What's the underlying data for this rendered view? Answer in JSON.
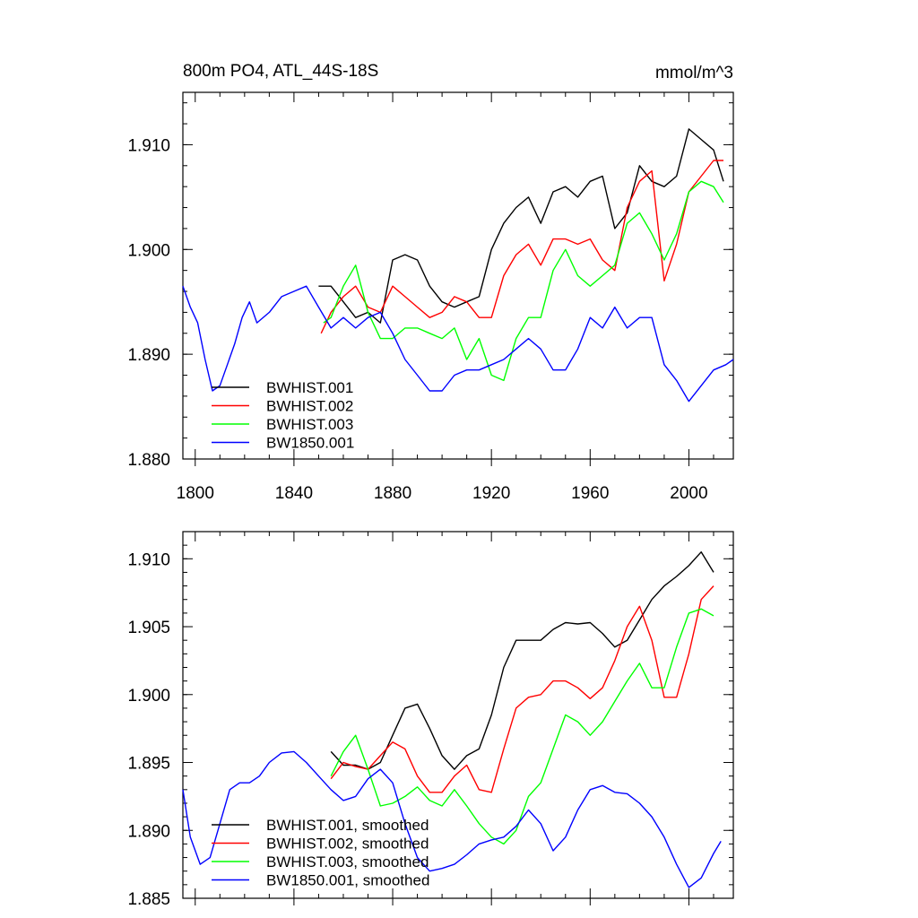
{
  "chart_data": [
    {
      "type": "line",
      "title": "800m PO4, ATL_44S-18S",
      "units": "mmol/m^3",
      "xlim": [
        1795,
        2018
      ],
      "ylim": [
        1.88,
        1.915
      ],
      "xticks": [
        1800,
        1840,
        1880,
        1920,
        1960,
        2000
      ],
      "xtick_labels": [
        "1800",
        "1840",
        "1880",
        "1920",
        "1960",
        "2000"
      ],
      "yticks": [
        1.88,
        1.89,
        1.9,
        1.91
      ],
      "ytick_labels": [
        "1.880",
        "1.890",
        "1.900",
        "1.910"
      ],
      "legend_position": "bottom-left",
      "series": [
        {
          "name": "BWHIST.001",
          "color": "#000000",
          "x": [
            1850,
            1855,
            1860,
            1865,
            1870,
            1875,
            1880,
            1885,
            1890,
            1895,
            1900,
            1905,
            1910,
            1915,
            1920,
            1925,
            1930,
            1935,
            1940,
            1945,
            1950,
            1955,
            1960,
            1965,
            1970,
            1975,
            1980,
            1985,
            1990,
            1995,
            2000,
            2005,
            2010,
            2014
          ],
          "y": [
            1.8965,
            1.8965,
            1.895,
            1.8935,
            1.894,
            1.893,
            1.899,
            1.8995,
            1.899,
            1.8965,
            1.895,
            1.8945,
            1.895,
            1.8955,
            1.9,
            1.9025,
            1.904,
            1.905,
            1.9025,
            1.9055,
            1.906,
            1.905,
            1.9065,
            1.907,
            1.902,
            1.9035,
            1.908,
            1.9065,
            1.906,
            1.907,
            1.9115,
            1.9105,
            1.9095,
            1.9065
          ]
        },
        {
          "name": "BWHIST.002",
          "color": "#ff0000",
          "x": [
            1851,
            1855,
            1860,
            1865,
            1870,
            1875,
            1880,
            1885,
            1890,
            1895,
            1900,
            1905,
            1910,
            1915,
            1920,
            1925,
            1930,
            1935,
            1940,
            1945,
            1950,
            1955,
            1960,
            1965,
            1970,
            1975,
            1980,
            1985,
            1990,
            1995,
            2000,
            2005,
            2010,
            2014
          ],
          "y": [
            1.892,
            1.894,
            1.8955,
            1.8965,
            1.8945,
            1.894,
            1.8965,
            1.8955,
            1.8945,
            1.8935,
            1.894,
            1.8955,
            1.895,
            1.8935,
            1.8935,
            1.8975,
            1.8995,
            1.9005,
            1.8985,
            1.901,
            1.901,
            1.9005,
            1.901,
            1.899,
            1.898,
            1.904,
            1.9065,
            1.9075,
            1.897,
            1.9005,
            1.9055,
            1.907,
            1.9085,
            1.9085
          ]
        },
        {
          "name": "BWHIST.003",
          "color": "#00ff00",
          "x": [
            1852,
            1855,
            1860,
            1865,
            1870,
            1875,
            1880,
            1885,
            1890,
            1895,
            1900,
            1905,
            1910,
            1915,
            1920,
            1925,
            1930,
            1935,
            1940,
            1945,
            1950,
            1955,
            1960,
            1965,
            1970,
            1975,
            1980,
            1985,
            1990,
            1995,
            2000,
            2005,
            2010,
            2014
          ],
          "y": [
            1.893,
            1.8935,
            1.8965,
            1.8985,
            1.894,
            1.8915,
            1.8915,
            1.8925,
            1.8925,
            1.892,
            1.8915,
            1.8925,
            1.8895,
            1.8915,
            1.888,
            1.8875,
            1.8915,
            1.8935,
            1.8935,
            1.898,
            1.9,
            1.8975,
            1.8965,
            1.8975,
            1.8985,
            1.9025,
            1.9035,
            1.9015,
            1.899,
            1.9015,
            1.9055,
            1.9065,
            1.906,
            1.9045
          ]
        },
        {
          "name": "BW1850.001",
          "color": "#0000ff",
          "x": [
            1795,
            1798,
            1801,
            1804,
            1807,
            1810,
            1813,
            1816,
            1819,
            1822,
            1825,
            1830,
            1835,
            1840,
            1845,
            1850,
            1855,
            1860,
            1865,
            1870,
            1875,
            1880,
            1885,
            1890,
            1895,
            1900,
            1905,
            1910,
            1915,
            1920,
            1925,
            1930,
            1935,
            1940,
            1945,
            1950,
            1955,
            1960,
            1965,
            1970,
            1975,
            1980,
            1985,
            1990,
            1995,
            2000,
            2005,
            2010,
            2015,
            2018
          ],
          "y": [
            1.8965,
            1.8945,
            1.893,
            1.8895,
            1.8865,
            1.887,
            1.889,
            1.891,
            1.8935,
            1.895,
            1.893,
            1.894,
            1.8955,
            1.896,
            1.8965,
            1.8945,
            1.8925,
            1.8935,
            1.8925,
            1.8935,
            1.894,
            1.892,
            1.8895,
            1.888,
            1.8865,
            1.8865,
            1.888,
            1.8885,
            1.8885,
            1.889,
            1.8895,
            1.8905,
            1.8915,
            1.8905,
            1.8885,
            1.8885,
            1.8905,
            1.8935,
            1.8925,
            1.8945,
            1.8925,
            1.8935,
            1.8935,
            1.889,
            1.8875,
            1.8855,
            1.887,
            1.8885,
            1.889,
            1.8895
          ]
        }
      ]
    },
    {
      "type": "line",
      "xlim": [
        1795,
        2018
      ],
      "ylim": [
        1.885,
        1.912
      ],
      "xticks": [
        1800,
        1840,
        1880,
        1920,
        1960,
        2000
      ],
      "yticks": [
        1.885,
        1.89,
        1.895,
        1.9,
        1.905,
        1.91
      ],
      "ytick_labels": [
        "1.885",
        "1.890",
        "1.895",
        "1.900",
        "1.905",
        "1.910"
      ],
      "legend_position": "bottom-left",
      "series": [
        {
          "name": "BWHIST.001, smoothed",
          "color": "#000000",
          "x": [
            1855,
            1860,
            1865,
            1870,
            1875,
            1880,
            1885,
            1890,
            1895,
            1900,
            1905,
            1910,
            1915,
            1920,
            1925,
            1930,
            1935,
            1940,
            1945,
            1950,
            1955,
            1960,
            1965,
            1970,
            1975,
            1980,
            1985,
            1990,
            1995,
            2000,
            2005,
            2010
          ],
          "y": [
            1.8958,
            1.8948,
            1.8948,
            1.8945,
            1.895,
            1.897,
            1.899,
            1.8993,
            1.8975,
            1.8955,
            1.8945,
            1.8955,
            1.896,
            1.8985,
            1.902,
            1.904,
            1.904,
            1.904,
            1.9048,
            1.9053,
            1.9052,
            1.9053,
            1.9045,
            1.9035,
            1.904,
            1.9055,
            1.907,
            1.908,
            1.9087,
            1.9095,
            1.9105,
            1.909
          ]
        },
        {
          "name": "BWHIST.002, smoothed",
          "color": "#ff0000",
          "x": [
            1855,
            1860,
            1865,
            1870,
            1875,
            1880,
            1885,
            1890,
            1895,
            1900,
            1905,
            1910,
            1915,
            1920,
            1925,
            1930,
            1935,
            1940,
            1945,
            1950,
            1955,
            1960,
            1965,
            1970,
            1975,
            1980,
            1985,
            1990,
            1995,
            2000,
            2005,
            2010
          ],
          "y": [
            1.8938,
            1.895,
            1.8947,
            1.8945,
            1.8955,
            1.8965,
            1.896,
            1.894,
            1.8928,
            1.8928,
            1.894,
            1.8948,
            1.893,
            1.8928,
            1.896,
            1.899,
            1.8998,
            1.9,
            1.901,
            1.901,
            1.9005,
            1.8997,
            1.9005,
            1.9025,
            1.905,
            1.9065,
            1.904,
            1.8998,
            1.8998,
            1.903,
            1.907,
            1.908
          ]
        },
        {
          "name": "BWHIST.003, smoothed",
          "color": "#00ff00",
          "x": [
            1855,
            1860,
            1865,
            1870,
            1875,
            1880,
            1885,
            1890,
            1895,
            1900,
            1905,
            1910,
            1915,
            1920,
            1925,
            1930,
            1935,
            1940,
            1945,
            1950,
            1955,
            1960,
            1965,
            1970,
            1975,
            1980,
            1985,
            1990,
            1995,
            2000,
            2005,
            2010
          ],
          "y": [
            1.894,
            1.8958,
            1.897,
            1.8945,
            1.8918,
            1.892,
            1.8925,
            1.8932,
            1.8922,
            1.8918,
            1.893,
            1.8918,
            1.8905,
            1.8895,
            1.889,
            1.89,
            1.8925,
            1.8935,
            1.896,
            1.8985,
            1.898,
            1.897,
            1.898,
            1.8995,
            1.901,
            1.9023,
            1.9005,
            1.9005,
            1.9035,
            1.906,
            1.9063,
            1.9058
          ]
        },
        {
          "name": "BW1850.001, smoothed",
          "color": "#0000ff",
          "x": [
            1795,
            1798,
            1802,
            1806,
            1810,
            1814,
            1818,
            1822,
            1826,
            1830,
            1835,
            1840,
            1845,
            1850,
            1855,
            1860,
            1865,
            1870,
            1875,
            1880,
            1885,
            1890,
            1895,
            1900,
            1905,
            1910,
            1915,
            1920,
            1925,
            1930,
            1935,
            1940,
            1945,
            1950,
            1955,
            1960,
            1965,
            1970,
            1975,
            1980,
            1985,
            1990,
            1995,
            2000,
            2005,
            2010,
            2013
          ],
          "y": [
            1.893,
            1.8895,
            1.8875,
            1.888,
            1.8905,
            1.893,
            1.8935,
            1.8935,
            1.894,
            1.895,
            1.8957,
            1.8958,
            1.895,
            1.894,
            1.893,
            1.8922,
            1.8925,
            1.8938,
            1.8945,
            1.8935,
            1.8905,
            1.888,
            1.887,
            1.8872,
            1.8875,
            1.8882,
            1.889,
            1.8893,
            1.8895,
            1.8903,
            1.8915,
            1.8905,
            1.8885,
            1.8895,
            1.8915,
            1.893,
            1.8933,
            1.8928,
            1.8927,
            1.892,
            1.891,
            1.8895,
            1.8875,
            1.8858,
            1.8865,
            1.8883,
            1.8892
          ]
        }
      ]
    }
  ]
}
